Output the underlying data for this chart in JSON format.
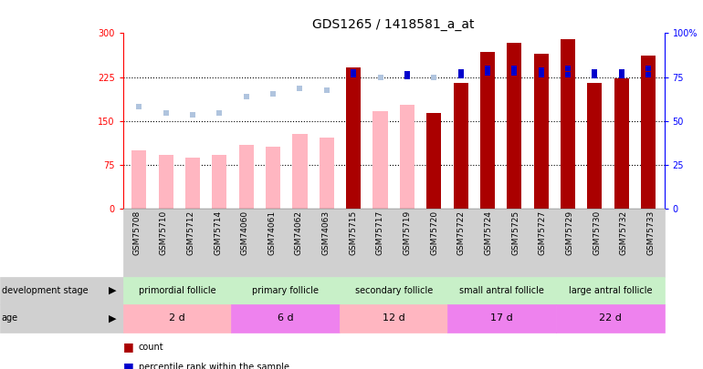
{
  "title": "GDS1265 / 1418581_a_at",
  "samples": [
    "GSM75708",
    "GSM75710",
    "GSM75712",
    "GSM75714",
    "GSM74060",
    "GSM74061",
    "GSM74062",
    "GSM74063",
    "GSM75715",
    "GSM75717",
    "GSM75719",
    "GSM75720",
    "GSM75722",
    "GSM75724",
    "GSM75725",
    "GSM75727",
    "GSM75729",
    "GSM75730",
    "GSM75732",
    "GSM75733"
  ],
  "count_values": [
    100,
    92,
    87,
    92,
    109,
    105,
    127,
    122,
    242,
    167,
    178,
    163,
    215,
    268,
    284,
    265,
    290,
    215,
    222,
    262
  ],
  "count_absent": [
    true,
    true,
    true,
    true,
    true,
    true,
    true,
    true,
    false,
    true,
    true,
    false,
    false,
    false,
    false,
    false,
    false,
    false,
    false,
    false
  ],
  "rank_values": [
    175,
    164,
    161,
    163,
    192,
    196,
    205,
    203,
    229,
    225,
    226,
    225,
    228,
    232,
    232,
    229,
    229,
    228,
    228,
    229
  ],
  "rank_absent": [
    true,
    true,
    true,
    true,
    true,
    true,
    true,
    true,
    false,
    true,
    false,
    true,
    false,
    false,
    false,
    false,
    false,
    false,
    false,
    false
  ],
  "percentile_rank": [
    null,
    null,
    null,
    null,
    null,
    null,
    null,
    null,
    78,
    null,
    77,
    null,
    78,
    80,
    80,
    79,
    80,
    78,
    78,
    80
  ],
  "ylim_left": [
    0,
    300
  ],
  "ylim_right": [
    0,
    100
  ],
  "yticks_left": [
    0,
    75,
    150,
    225,
    300
  ],
  "yticks_right": [
    0,
    25,
    50,
    75,
    100
  ],
  "group_boundaries": [
    {
      "start": 0,
      "end": 4,
      "label": "primordial follicle",
      "color": "#c8f0c8"
    },
    {
      "start": 4,
      "end": 8,
      "label": "primary follicle",
      "color": "#c8f0c8"
    },
    {
      "start": 8,
      "end": 12,
      "label": "secondary follicle",
      "color": "#c8f0c8"
    },
    {
      "start": 12,
      "end": 16,
      "label": "small antral follicle",
      "color": "#c8f0c8"
    },
    {
      "start": 16,
      "end": 20,
      "label": "large antral follicle",
      "color": "#c8f0c8"
    }
  ],
  "age_boundaries": [
    {
      "start": 0,
      "end": 4,
      "label": "2 d",
      "color": "#ffb6c1"
    },
    {
      "start": 4,
      "end": 8,
      "label": "6 d",
      "color": "#ee82ee"
    },
    {
      "start": 8,
      "end": 12,
      "label": "12 d",
      "color": "#ffb6c1"
    },
    {
      "start": 12,
      "end": 16,
      "label": "17 d",
      "color": "#ee82ee"
    },
    {
      "start": 16,
      "end": 20,
      "label": "22 d",
      "color": "#ee82ee"
    }
  ],
  "absent_bar_color": "#ffb6c1",
  "present_bar_color": "#aa0000",
  "absent_rank_color": "#b0c4de",
  "present_rank_color": "#0000cc",
  "grid_color": "black",
  "grid_linestyle": "dotted",
  "grid_linewidth": 0.8,
  "title_fontsize": 10,
  "tick_fontsize": 7,
  "label_fontsize": 7,
  "row_fontsize": 7,
  "age_fontsize": 8
}
